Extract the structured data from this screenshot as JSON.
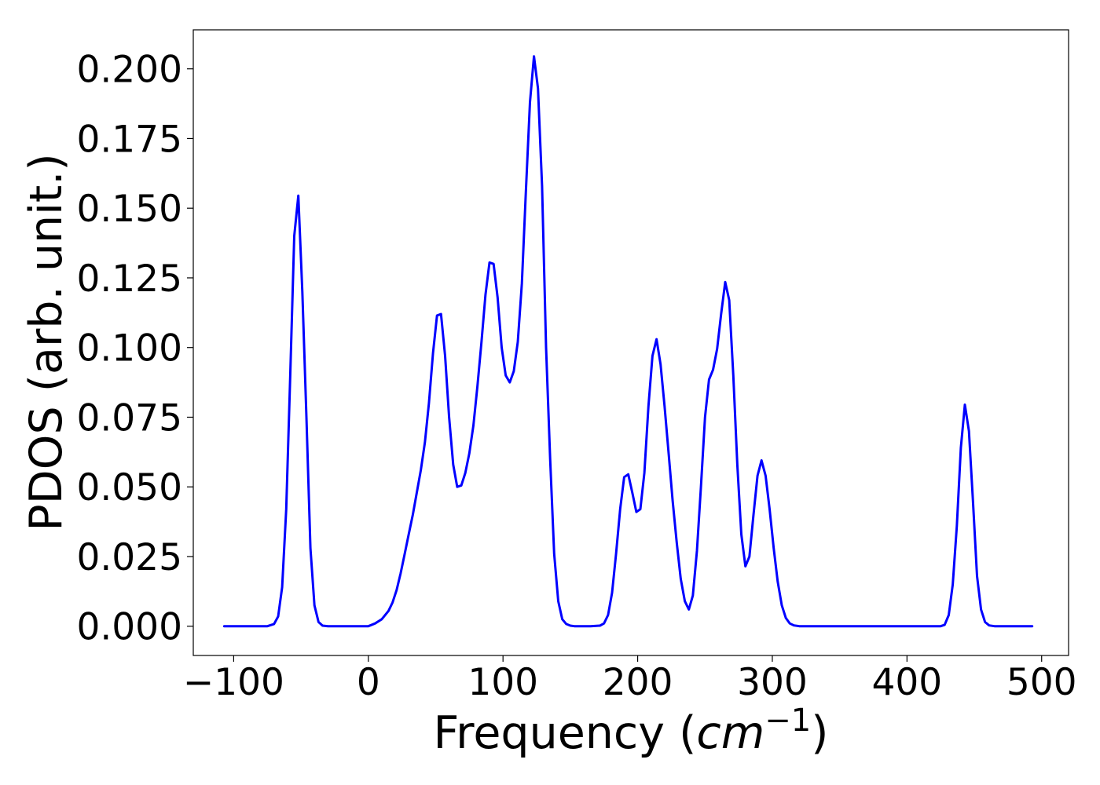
{
  "chart_data": {
    "type": "line",
    "title": "",
    "xlabel_prefix": "Frequency (",
    "xlabel_math": "cm",
    "xlabel_exp": "−1",
    "xlabel_suffix": ")",
    "ylabel": "PDOS (arb. unit.)",
    "xlim": [
      -130,
      520
    ],
    "ylim": [
      -0.0105,
      0.214
    ],
    "xticks": [
      -100,
      0,
      100,
      200,
      300,
      400,
      500
    ],
    "xtick_labels": [
      "−100",
      "0",
      "100",
      "200",
      "300",
      "400",
      "500"
    ],
    "yticks": [
      0.0,
      0.025,
      0.05,
      0.075,
      0.1,
      0.125,
      0.15,
      0.175,
      0.2
    ],
    "ytick_labels": [
      "0.000",
      "0.025",
      "0.050",
      "0.075",
      "0.100",
      "0.125",
      "0.150",
      "0.175",
      "0.200"
    ],
    "grid": false,
    "line_color": "#0000ff",
    "series": [
      {
        "name": "",
        "x": [
          -107,
          -75,
          -70,
          -67,
          -64,
          -61,
          -58,
          -55,
          -52,
          -49,
          -46,
          -43,
          -40,
          -37,
          -34,
          -30,
          0,
          5,
          10,
          15,
          18,
          21,
          24,
          27,
          30,
          33,
          36,
          39,
          42,
          45,
          48,
          51,
          54,
          57,
          60,
          63,
          66,
          69,
          72,
          75,
          78,
          81,
          84,
          87,
          90,
          93,
          96,
          99,
          102,
          105,
          108,
          111,
          114,
          117,
          120,
          123,
          126,
          129,
          132,
          135,
          138,
          141,
          144,
          147,
          150,
          153,
          156,
          160,
          165,
          172,
          175,
          178,
          181,
          184,
          187,
          190,
          193,
          196,
          199,
          202,
          205,
          208,
          211,
          214,
          217,
          220,
          223,
          226,
          229,
          232,
          235,
          238,
          241,
          244,
          247,
          250,
          253,
          256,
          259,
          262,
          265,
          268,
          271,
          274,
          277,
          280,
          283,
          286,
          289,
          292,
          295,
          298,
          301,
          304,
          307,
          310,
          313,
          316,
          320,
          425,
          428,
          431,
          434,
          437,
          440,
          443,
          446,
          449,
          452,
          455,
          458,
          461,
          465,
          493
        ],
        "y": [
          0.0,
          0.0,
          0.0008,
          0.0035,
          0.014,
          0.042,
          0.09,
          0.14,
          0.1545,
          0.12,
          0.075,
          0.028,
          0.0075,
          0.0015,
          0.0002,
          0.0,
          0.0,
          0.001,
          0.0025,
          0.0055,
          0.0085,
          0.013,
          0.019,
          0.026,
          0.033,
          0.04,
          0.048,
          0.056,
          0.066,
          0.08,
          0.098,
          0.1115,
          0.112,
          0.097,
          0.075,
          0.058,
          0.05,
          0.0505,
          0.055,
          0.062,
          0.072,
          0.086,
          0.102,
          0.119,
          0.1305,
          0.13,
          0.118,
          0.1,
          0.09,
          0.0875,
          0.0915,
          0.102,
          0.123,
          0.156,
          0.188,
          0.2045,
          0.193,
          0.158,
          0.1,
          0.06,
          0.026,
          0.009,
          0.0025,
          0.0008,
          0.0002,
          0.0,
          0.0,
          0.0,
          0.0,
          0.0002,
          0.001,
          0.004,
          0.012,
          0.026,
          0.042,
          0.0535,
          0.0545,
          0.048,
          0.041,
          0.042,
          0.055,
          0.079,
          0.097,
          0.103,
          0.094,
          0.079,
          0.062,
          0.045,
          0.03,
          0.017,
          0.009,
          0.006,
          0.011,
          0.027,
          0.05,
          0.075,
          0.0885,
          0.092,
          0.0995,
          0.112,
          0.1235,
          0.117,
          0.09,
          0.058,
          0.033,
          0.0215,
          0.025,
          0.04,
          0.054,
          0.0595,
          0.054,
          0.042,
          0.028,
          0.016,
          0.0075,
          0.003,
          0.001,
          0.0003,
          0.0,
          0.0,
          0.0005,
          0.004,
          0.015,
          0.036,
          0.064,
          0.0795,
          0.07,
          0.045,
          0.018,
          0.006,
          0.0015,
          0.0003,
          0.0,
          0.0
        ]
      }
    ]
  }
}
